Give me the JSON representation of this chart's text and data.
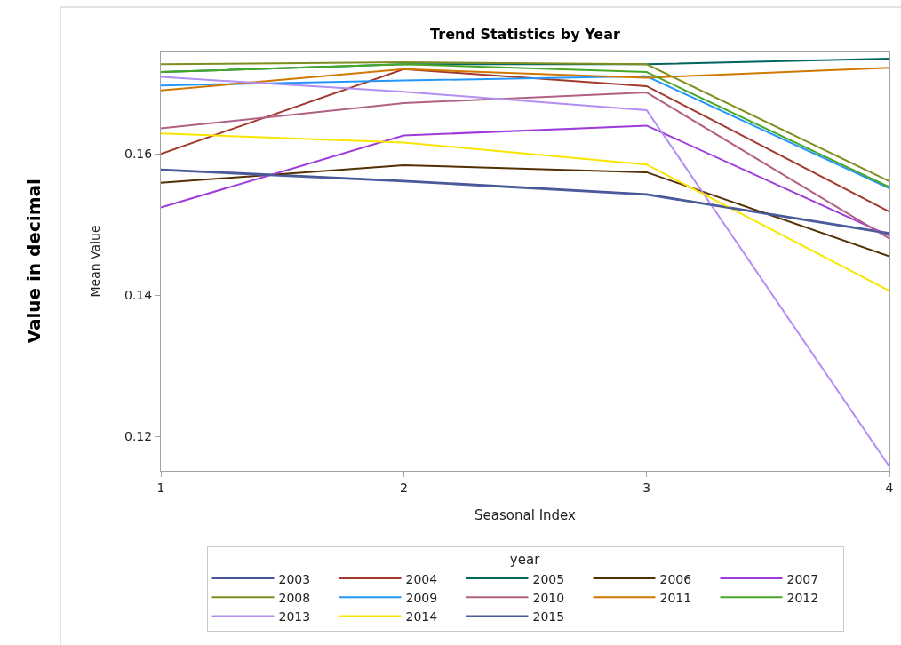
{
  "chart_data": {
    "type": "line",
    "title": "Trend Statistics by Year",
    "xlabel": "Seasonal Index",
    "ylabel": "Mean Value",
    "legend_title": "year",
    "annotations": [
      "Value in decimal"
    ],
    "x": [
      1,
      2,
      3,
      4
    ],
    "series": [
      {
        "name": "2003",
        "color": "#445694",
        "values": [
          0.1578,
          0.1562,
          0.1543,
          0.1488
        ]
      },
      {
        "name": "2004",
        "color": "#a23a2e",
        "values": [
          0.16,
          0.172,
          0.1696,
          0.1518
        ]
      },
      {
        "name": "2005",
        "color": "#01665e",
        "values": [
          0.1716,
          0.1727,
          0.1727,
          0.1735
        ]
      },
      {
        "name": "2006",
        "color": "#543005",
        "values": [
          0.1559,
          0.1584,
          0.1574,
          0.1455
        ]
      },
      {
        "name": "2007",
        "color": "#9d3cdb",
        "values": [
          0.1524,
          0.1626,
          0.164,
          0.1484
        ]
      },
      {
        "name": "2008",
        "color": "#7f8e1f",
        "values": [
          0.1727,
          0.173,
          0.1727,
          0.1561
        ]
      },
      {
        "name": "2009",
        "color": "#2597fa",
        "values": [
          0.1697,
          0.1704,
          0.171,
          0.1551
        ]
      },
      {
        "name": "2010",
        "color": "#b26084",
        "values": [
          0.1636,
          0.1672,
          0.1687,
          0.148
        ]
      },
      {
        "name": "2011",
        "color": "#d17800",
        "values": [
          0.169,
          0.172,
          0.1708,
          0.1722
        ]
      },
      {
        "name": "2012",
        "color": "#47a82a",
        "values": [
          0.1716,
          0.1727,
          0.1716,
          0.1553
        ]
      },
      {
        "name": "2013",
        "color": "#b38ef3",
        "values": [
          0.1709,
          0.1688,
          0.1662,
          0.1157
        ]
      },
      {
        "name": "2014",
        "color": "#f9e500",
        "values": [
          0.1629,
          0.1616,
          0.1585,
          0.1406
        ]
      },
      {
        "name": "2015",
        "color": "#4b5c9c",
        "values": [
          0.1577,
          0.1561,
          0.1542,
          0.1487
        ]
      }
    ],
    "xlim": [
      1,
      4
    ],
    "xticks": [
      1,
      2,
      3,
      4
    ],
    "ylim": [
      0.1151,
      0.1745
    ],
    "yticks": [
      0.12,
      0.14,
      0.16
    ],
    "legend": "bottom",
    "marker": "none",
    "line_style": "solid"
  }
}
